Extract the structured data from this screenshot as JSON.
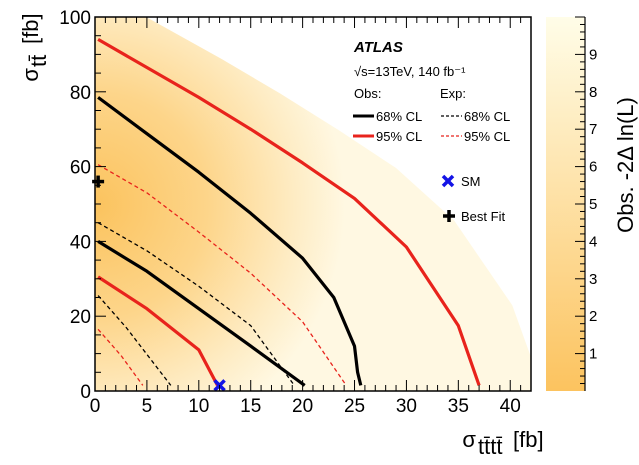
{
  "chart_data": {
    "type": "contour",
    "xlabel": "σ_tt̄tt̄ [fb]",
    "xlabel_main": "σ",
    "xlabel_sub": "tt̄tt̄",
    "xlabel_unit": "[fb]",
    "ylabel_main": "σ",
    "ylabel_sub": "tt̄",
    "ylabel_unit": "[fb]",
    "xlim": [
      0,
      42
    ],
    "ylim": [
      0,
      100
    ],
    "x_ticks": [
      "0",
      "5",
      "10",
      "15",
      "20",
      "25",
      "30",
      "35",
      "40"
    ],
    "y_ticks": [
      "0",
      "20",
      "40",
      "60",
      "80",
      "100"
    ],
    "colorbar": {
      "label": "Obs. -2Δ ln(L)",
      "range": [
        0,
        10
      ],
      "ticks": [
        "1",
        "2",
        "3",
        "4",
        "5",
        "6",
        "7",
        "8",
        "9"
      ],
      "color_low": "#fcc35f",
      "color_high": "#fffde8"
    },
    "header": {
      "experiment": "ATLAS",
      "energy": "√s=13TeV, 140 fb⁻¹"
    },
    "legend": {
      "obs_title": "Obs:",
      "exp_title": "Exp:",
      "obs_68": "68% CL",
      "obs_95": "95% CL",
      "exp_68": "68% CL",
      "exp_95": "95% CL",
      "sm": "SM",
      "best_fit": "Best Fit"
    },
    "colors": {
      "cl68": "#000000",
      "cl95": "#e8231c",
      "sm": "#1414e6",
      "best_fit": "#000000"
    },
    "contours": {
      "obs_68": [
        [
          [
            0.3,
            78.5
          ],
          [
            5,
            68.8
          ],
          [
            10,
            58.5
          ],
          [
            15,
            47.5
          ],
          [
            20,
            35.5
          ],
          [
            23,
            25
          ],
          [
            25,
            12
          ],
          [
            25.3,
            5
          ],
          [
            25.6,
            1.5
          ]
        ],
        [
          [
            0.3,
            40
          ],
          [
            5,
            32
          ],
          [
            10,
            22
          ],
          [
            15,
            12
          ],
          [
            20.2,
            1.5
          ]
        ]
      ],
      "obs_95": [
        [
          [
            0.3,
            94
          ],
          [
            5,
            86.5
          ],
          [
            10,
            78.5
          ],
          [
            15,
            70
          ],
          [
            20,
            61
          ],
          [
            25,
            51.5
          ],
          [
            30,
            38.5
          ],
          [
            35,
            17.5
          ],
          [
            37,
            1.5
          ]
        ],
        [
          [
            0.3,
            30.5
          ],
          [
            5,
            22
          ],
          [
            10,
            11
          ],
          [
            11.8,
            1.5
          ]
        ]
      ],
      "exp_68": [
        [
          [
            0.3,
            45
          ],
          [
            5,
            37.5
          ],
          [
            10,
            28
          ],
          [
            15,
            17.5
          ],
          [
            19.2,
            1.5
          ]
        ],
        [
          [
            0.3,
            25.5
          ],
          [
            3,
            17
          ],
          [
            7.3,
            1.5
          ]
        ]
      ],
      "exp_95": [
        [
          [
            0.3,
            60.5
          ],
          [
            5,
            53
          ],
          [
            10,
            42.5
          ],
          [
            15,
            31.5
          ],
          [
            20,
            18.5
          ],
          [
            24.2,
            1.5
          ]
        ],
        [
          [
            0.3,
            16.5
          ],
          [
            2.5,
            9.5
          ],
          [
            4.6,
            1.5
          ]
        ]
      ]
    },
    "sm_point": [
      12.0,
      1.5
    ],
    "best_fit_point": [
      0.3,
      56.0
    ]
  }
}
